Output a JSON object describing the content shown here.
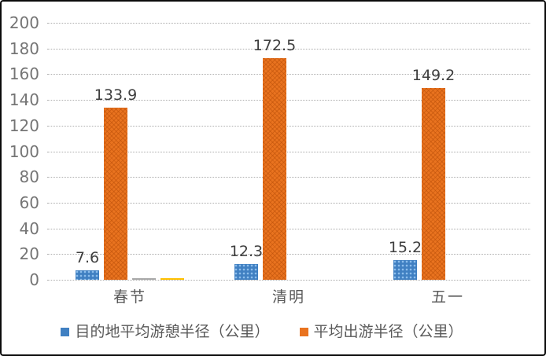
{
  "chart_data": {
    "type": "bar",
    "title": "",
    "categories": [
      "春节",
      "清明",
      "五一"
    ],
    "series": [
      {
        "name": "目的地平均游憩半径（公里）",
        "color": "#4080c2",
        "values": [
          7.6,
          12.3,
          15.2
        ],
        "data_labels": [
          "7.6",
          "12.3",
          "15.2"
        ],
        "show_data_labels": true,
        "in_legend": true
      },
      {
        "name": "平均出游半径（公里）",
        "color": "#e9731f",
        "values": [
          133.9,
          172.5,
          149.2
        ],
        "data_labels": [
          "133.9",
          "172.5",
          "149.2"
        ],
        "show_data_labels": true,
        "in_legend": true
      },
      {
        "name": "unlabeled-gray-series",
        "color": "#a8a8a8",
        "values": [
          1,
          0,
          0
        ],
        "data_labels": [
          "",
          "",
          ""
        ],
        "show_data_labels": false,
        "in_legend": false
      },
      {
        "name": "unlabeled-yellow-series",
        "color": "#ffc000",
        "values": [
          1,
          0,
          0
        ],
        "data_labels": [
          "",
          "",
          ""
        ],
        "show_data_labels": false,
        "in_legend": false
      }
    ],
    "ylim": [
      0,
      200
    ],
    "yticks": [
      0,
      20,
      40,
      60,
      80,
      100,
      120,
      140,
      160,
      180,
      200
    ],
    "xlabel": "",
    "ylabel": "",
    "grid": "horizontal-dotted",
    "legend_position": "bottom"
  },
  "legend": {
    "items": [
      {
        "label": "目的地平均游憩半径（公里）",
        "color": "#4080c2"
      },
      {
        "label": "平均出游半径（公里）",
        "color": "#e9731f"
      }
    ]
  },
  "colors": {
    "background": "#ffffff",
    "frame_border": "#0b0b0b",
    "gridline": "#adadad",
    "axis_tick_text": "#757575",
    "data_label_text": "#3f3f3f",
    "category_text": "#595959",
    "legend_text": "#595959",
    "bar_blue": "#4080c2",
    "bar_orange": "#e9731f",
    "bar_gray": "#a8a8a8",
    "bar_yellow": "#ffc000"
  }
}
